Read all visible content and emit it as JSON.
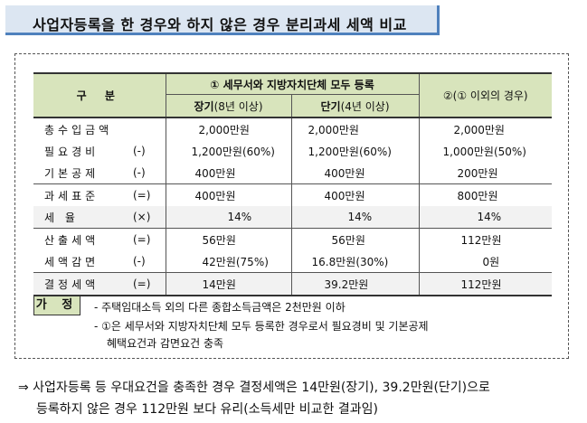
{
  "title": "사업자등록을 한 경우와 하지 않은 경우 분리과세 세액 비교",
  "table": {
    "header_gubun": "구  분",
    "header_group1": "① 세무서와 지방자치단체 모두 등록",
    "header_group2": "②(① 이외의 경우)",
    "sub_long_bold": "장기",
    "sub_long_rest": "(8년 이상)",
    "sub_short_bold": "단기",
    "sub_short_rest": "(4년 이상)",
    "rows": [
      {
        "label": "총수입금액",
        "op": "",
        "c1": "2,000만원",
        "c2": "2,000만원",
        "c3": "2,000만원"
      },
      {
        "label": "필요경비",
        "op": "(-)",
        "c1": "1,200만원(60%)",
        "c2": "1,200만원(60%)",
        "c3": "1,000만원(50%)"
      },
      {
        "label": "기본공제",
        "op": "(-)",
        "c1": "400만원",
        "c2": "400만원",
        "c3": "200만원"
      },
      {
        "label": "과세표준",
        "op": "(=)",
        "c1": "400만원",
        "c2": "400만원",
        "c3": "800만원"
      },
      {
        "label": "세    율",
        "op": "(×)",
        "c1": "14%",
        "c2": "14%",
        "c3": "14%"
      },
      {
        "label": "산출세액",
        "op": "(=)",
        "c1": "56만원",
        "c2": "56만원",
        "c3": "112만원"
      },
      {
        "label": "세액감면",
        "op": "(-)",
        "c1": "42만원(75%)",
        "c2": "16.8만원(30%)",
        "c3": "0원"
      },
      {
        "label": "결정세액",
        "op": "(=)",
        "c1": "14만원",
        "c2": "39.2만원",
        "c3": "112만원"
      }
    ]
  },
  "assumption": {
    "badge": "가 정",
    "line1": "- 주택임대소득 외의 다른 종합소득금액은 2천만원 이하",
    "line2": "- ①은 세무서와 지방자치단체 모두 등록한 경우로서 필요경비 및 기본공제",
    "line3": "혜택요건과 감면요건 충족"
  },
  "conclusion": {
    "line1": "⇒ 사업자등록 등 우대요건을 충족한 경우 결정세액은 14만원(장기), 39.2만원(단기)으로",
    "line2": "등록하지 않은 경우 112만원 보다 유리(소득세만 비교한 결과임)"
  }
}
